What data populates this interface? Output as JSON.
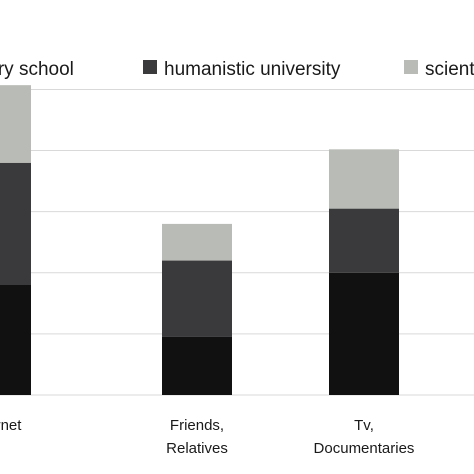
{
  "chart_data": {
    "type": "bar",
    "stacked": true,
    "categories": [
      [
        "Internet"
      ],
      [
        "Friends,",
        "Relatives"
      ],
      [
        "Tv,",
        "Documentaries"
      ]
    ],
    "series": [
      {
        "name": "secondary school",
        "color": "#111111",
        "values": [
          180,
          95,
          200
        ]
      },
      {
        "name": "humanistic university",
        "color": "#3a3a3c",
        "values": [
          200,
          125,
          105
        ]
      },
      {
        "name": "scientific university",
        "color": "#b9bbb6",
        "values": [
          127,
          60,
          97
        ]
      }
    ],
    "ylim": [
      0,
      540
    ],
    "grid": true,
    "legend_position": "top"
  }
}
